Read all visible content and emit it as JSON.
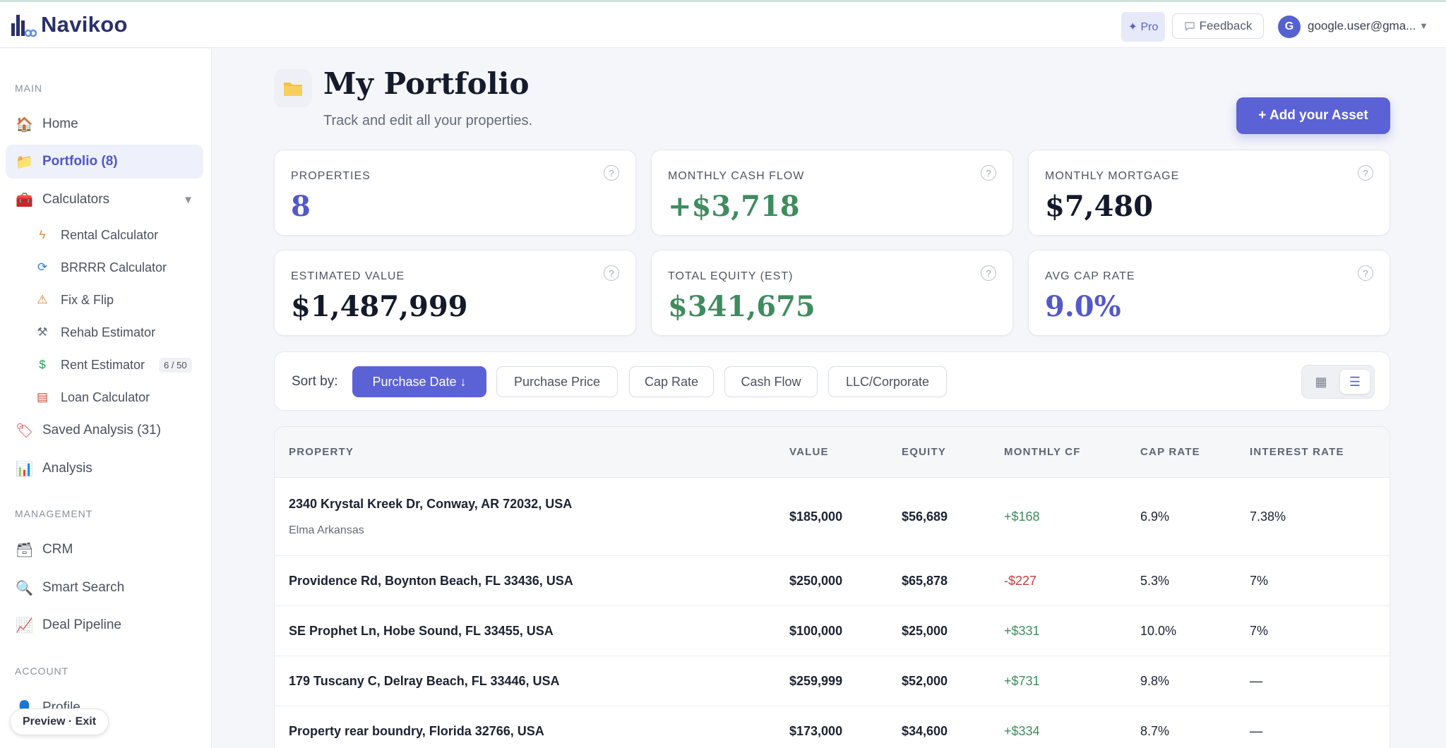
{
  "app": {
    "name": "Navikoo"
  },
  "header": {
    "pro_label": "✦ Pro",
    "feedback_label": "Feedback",
    "avatar_initial": "G",
    "user_email": "google.user@gma...",
    "caret_icon": "chevron-down-icon"
  },
  "sidebar": {
    "sections": {
      "main": "MAIN",
      "management": "MANAGEMENT",
      "account": "ACCOUNT"
    },
    "main_items": [
      {
        "label": "Home",
        "icon": "home-icon"
      },
      {
        "label": "Portfolio (8)",
        "icon": "folder-icon",
        "active": true
      },
      {
        "label": "Calculators",
        "icon": "toolbox-icon"
      }
    ],
    "calculators": [
      {
        "label": "Rental Calculator",
        "icon": "lightning-icon"
      },
      {
        "label": "BRRRR Calculator",
        "icon": "refresh-icon"
      },
      {
        "label": "Fix & Flip",
        "icon": "construction-icon"
      },
      {
        "label": "Rehab Estimator",
        "icon": "hammer-icon"
      },
      {
        "label": "Rent Estimator",
        "icon": "dollar-icon",
        "badge": "6 / 50"
      },
      {
        "label": "Loan Calculator",
        "icon": "ledger-icon"
      }
    ],
    "analysis_items": [
      {
        "label": "Saved Analysis (31)",
        "icon": "tag-icon"
      },
      {
        "label": "Analysis",
        "icon": "bar-chart-icon"
      }
    ],
    "management_items": [
      {
        "label": "CRM",
        "icon": "card-index-icon"
      },
      {
        "label": "Smart Search",
        "icon": "magnifier-icon"
      },
      {
        "label": "Deal Pipeline",
        "icon": "trend-chart-icon"
      }
    ],
    "account_items": [
      {
        "label": "Profile",
        "icon": "user-icon"
      }
    ],
    "preview_label": "Preview · Exit"
  },
  "page": {
    "title": "My Portfolio",
    "subtitle": "Track and edit all your properties.",
    "add_button": "+ Add your Asset"
  },
  "stats": [
    {
      "label": "PROPERTIES",
      "value": "8",
      "color": "#5359c9"
    },
    {
      "label": "MONTHLY CASH FLOW",
      "value": "+$3,718",
      "color": "#3f8c5e"
    },
    {
      "label": "MONTHLY MORTGAGE",
      "value": "$7,480",
      "color": "#141a2b"
    },
    {
      "label": "ESTIMATED VALUE",
      "value": "$1,487,999",
      "color": "#141a2b"
    },
    {
      "label": "TOTAL EQUITY (EST)",
      "value": "$341,675",
      "color": "#3f8c5e"
    },
    {
      "label": "AVG CAP RATE",
      "value": "9.0%",
      "color": "#5359c9"
    }
  ],
  "sort": {
    "label": "Sort by:",
    "options": [
      "Purchase Date ↓",
      "Purchase Price",
      "Cap Rate",
      "Cash Flow",
      "LLC/Corporate"
    ],
    "active": "Purchase Date ↓",
    "view_modes": [
      "grid-icon",
      "list-icon"
    ],
    "active_view": "list-icon"
  },
  "table": {
    "columns": [
      "PROPERTY",
      "VALUE",
      "EQUITY",
      "MONTHLY CF",
      "CAP RATE",
      "INTEREST RATE"
    ],
    "rows": [
      {
        "address": "2340 Krystal Kreek Dr, Conway, AR 72032, USA",
        "owner": "Elma Arkansas",
        "value": "$185,000",
        "equity": "$56,689",
        "cf": "+$168",
        "cf_sign": "pos",
        "cap": "6.9%",
        "interest": "7.38%"
      },
      {
        "address": "Providence Rd, Boynton Beach, FL 33436, USA",
        "owner": "",
        "value": "$250,000",
        "equity": "$65,878",
        "cf": "-$227",
        "cf_sign": "neg",
        "cap": "5.3%",
        "interest": "7%"
      },
      {
        "address": "SE Prophet Ln, Hobe Sound, FL 33455, USA",
        "owner": "",
        "value": "$100,000",
        "equity": "$25,000",
        "cf": "+$331",
        "cf_sign": "pos",
        "cap": "10.0%",
        "interest": "7%"
      },
      {
        "address": "179 Tuscany C, Delray Beach, FL 33446, USA",
        "owner": "",
        "value": "$259,999",
        "equity": "$52,000",
        "cf": "+$731",
        "cf_sign": "pos",
        "cap": "9.8%",
        "interest": "—"
      },
      {
        "address": "Property rear boundry, Florida 32766, USA",
        "owner": "",
        "value": "$173,000",
        "equity": "$34,600",
        "cf": "+$334",
        "cf_sign": "pos",
        "cap": "8.7%",
        "interest": "—"
      }
    ]
  }
}
